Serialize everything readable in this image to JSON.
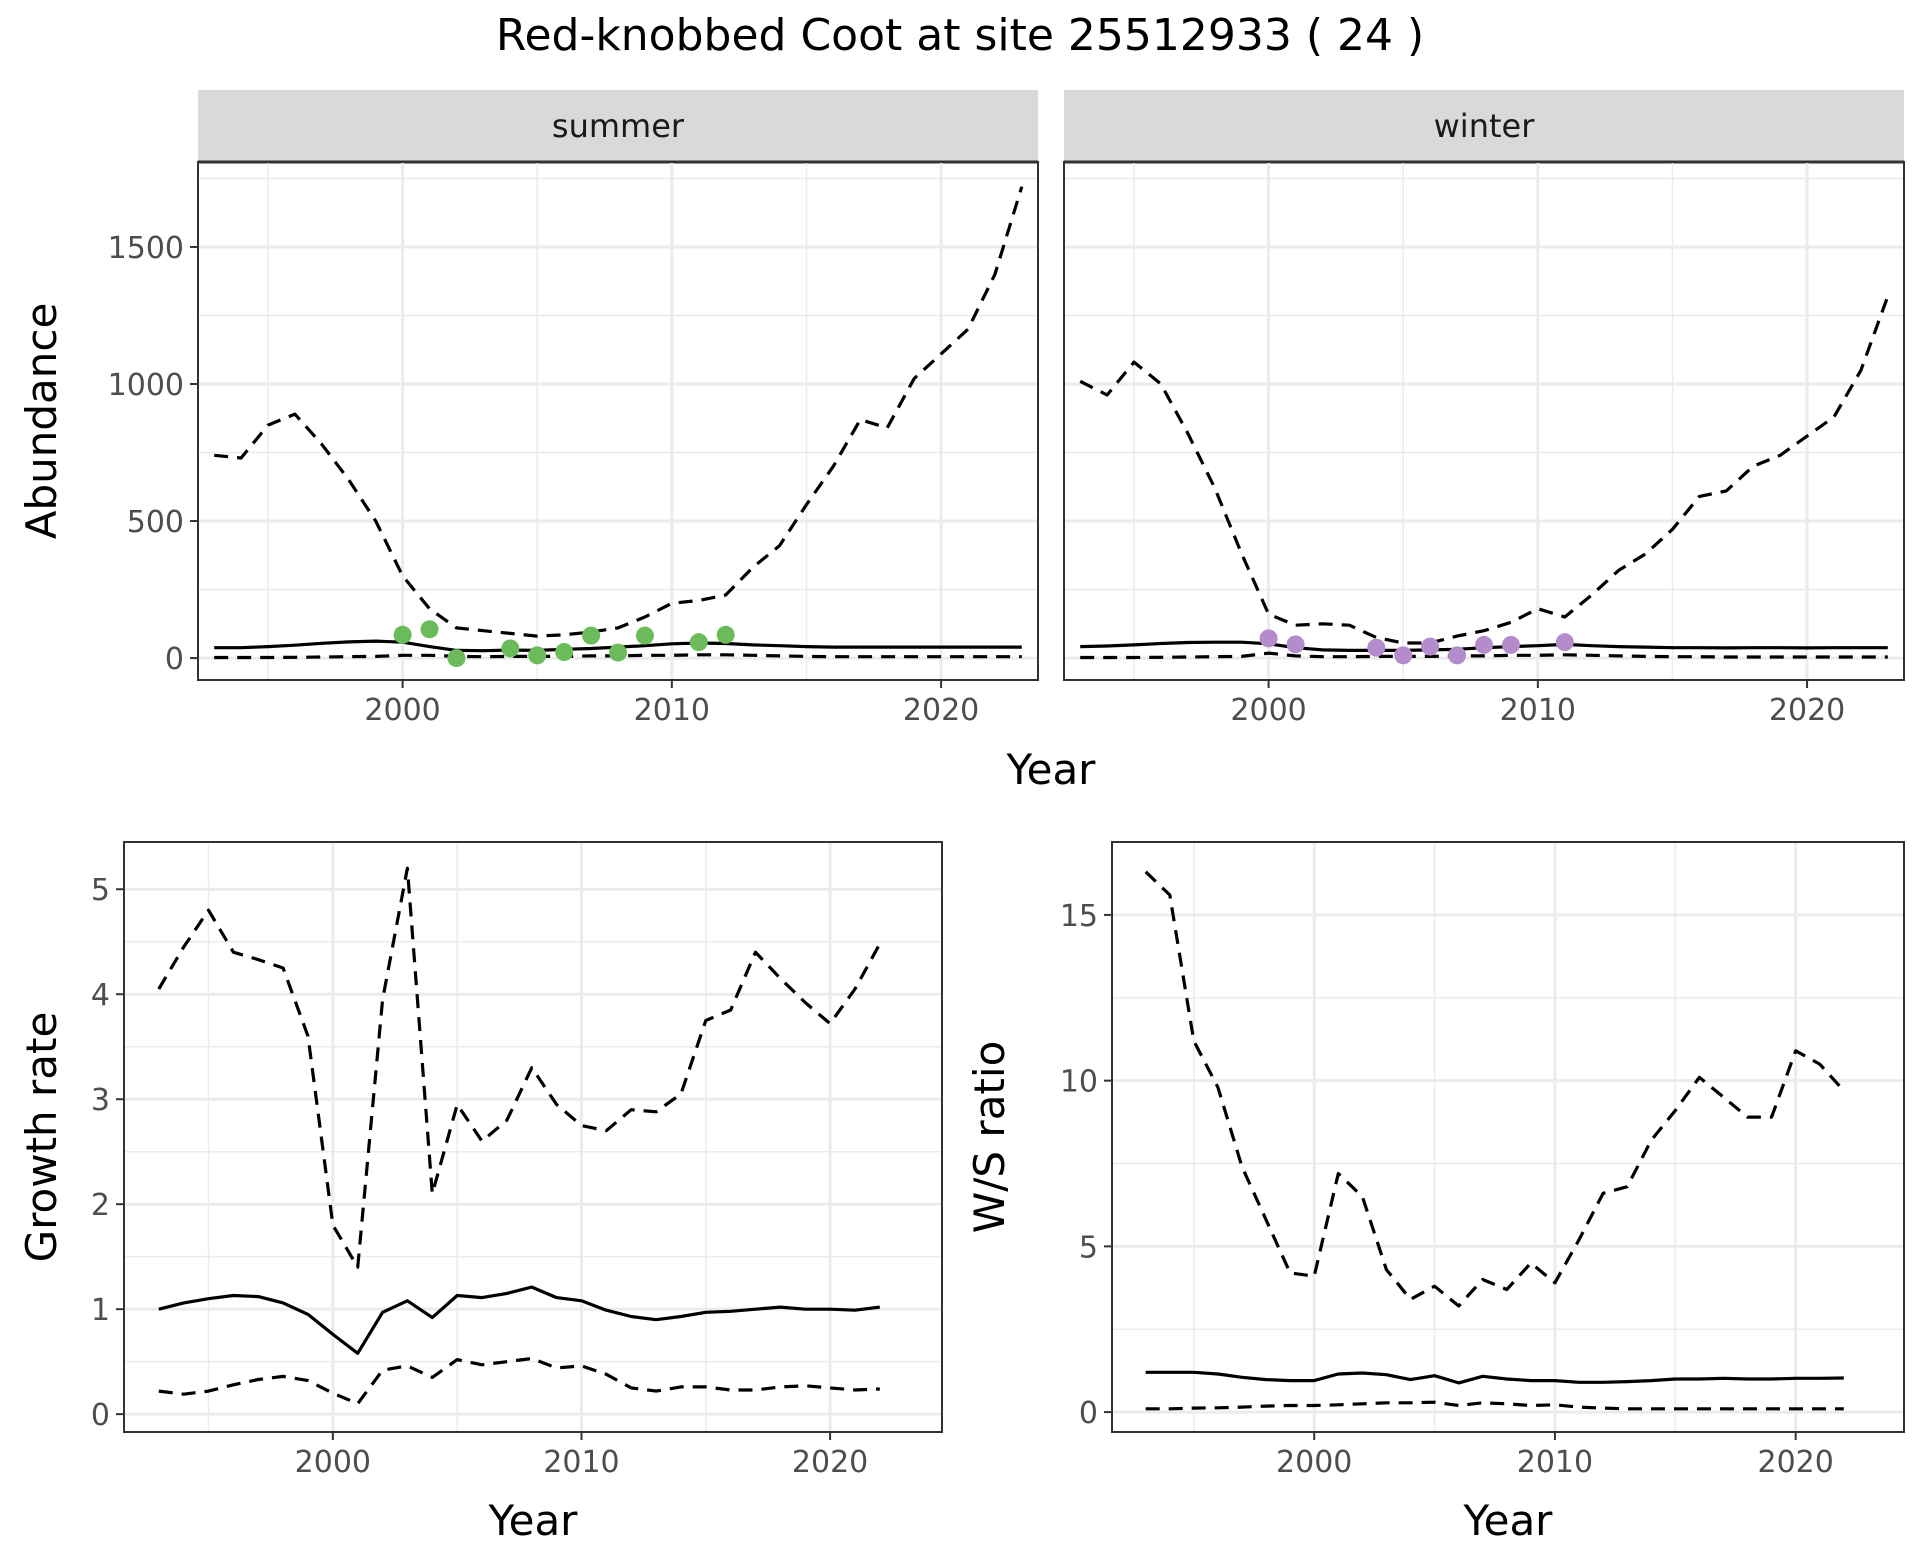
{
  "figure": {
    "title": "Red-knobbed Coot at site 25512933 ( 24 )"
  },
  "colors": {
    "summer_points": "#6cbb5a",
    "winter_points": "#b48ccb",
    "line": "#000000",
    "strip_fill": "#d9d9d9",
    "grid": "#ebebeb"
  },
  "chart_data": [
    {
      "type": "line",
      "title": "",
      "xlabel": "Year",
      "ylabel": "Abundance",
      "facets": [
        "summer",
        "winter"
      ],
      "xlim": [
        1992.4,
        2023.6
      ],
      "ylim": [
        -80,
        1810
      ],
      "xticks": [
        2000,
        2010,
        2020
      ],
      "yticks": [
        0,
        500,
        1000,
        1500
      ],
      "grid": true,
      "legend": "none",
      "panels": [
        {
          "facet": "summer",
          "x": [
            1993,
            1994,
            1995,
            1996,
            1997,
            1998,
            1999,
            2000,
            2001,
            2002,
            2003,
            2004,
            2005,
            2006,
            2007,
            2008,
            2009,
            2010,
            2011,
            2012,
            2013,
            2014,
            2015,
            2016,
            2017,
            2018,
            2019,
            2020,
            2021,
            2022,
            2023
          ],
          "mean": [
            38,
            38,
            42,
            47,
            54,
            59,
            62,
            58,
            42,
            28,
            27,
            29,
            28,
            32,
            35,
            40,
            45,
            52,
            55,
            53,
            48,
            45,
            42,
            40,
            40,
            40,
            40,
            40,
            40,
            40,
            40
          ],
          "upper": [
            740,
            730,
            850,
            890,
            780,
            650,
            500,
            300,
            180,
            110,
            100,
            90,
            80,
            85,
            95,
            110,
            150,
            200,
            210,
            230,
            330,
            410,
            560,
            700,
            870,
            840,
            1020,
            1110,
            1200,
            1400,
            1720
          ],
          "lower": [
            2,
            2,
            2,
            3,
            4,
            5,
            6,
            10,
            10,
            6,
            5,
            6,
            6,
            6,
            8,
            8,
            10,
            10,
            12,
            12,
            10,
            8,
            6,
            5,
            5,
            5,
            5,
            5,
            5,
            5,
            5
          ],
          "points": {
            "x": [
              2000,
              2001,
              2002,
              2004,
              2005,
              2006,
              2007,
              2008,
              2009,
              2011,
              2012
            ],
            "y": [
              85,
              105,
              0,
              35,
              10,
              22,
              82,
              20,
              82,
              58,
              85
            ]
          }
        },
        {
          "facet": "winter",
          "x": [
            1993,
            1994,
            1995,
            1996,
            1997,
            1998,
            1999,
            2000,
            2001,
            2002,
            2003,
            2004,
            2005,
            2006,
            2007,
            2008,
            2009,
            2010,
            2011,
            2012,
            2013,
            2014,
            2015,
            2016,
            2017,
            2018,
            2019,
            2020,
            2021,
            2022,
            2023
          ],
          "mean": [
            42,
            44,
            48,
            53,
            57,
            58,
            58,
            52,
            38,
            30,
            28,
            28,
            28,
            30,
            32,
            38,
            42,
            45,
            50,
            45,
            42,
            40,
            38,
            38,
            37,
            38,
            38,
            37,
            38,
            38,
            38
          ],
          "upper": [
            1010,
            960,
            1080,
            1000,
            820,
            620,
            380,
            160,
            120,
            125,
            120,
            75,
            55,
            55,
            80,
            100,
            130,
            180,
            150,
            230,
            320,
            380,
            470,
            590,
            610,
            700,
            740,
            810,
            880,
            1050,
            1320
          ],
          "lower": [
            2,
            2,
            2,
            3,
            4,
            5,
            6,
            18,
            8,
            5,
            5,
            6,
            6,
            6,
            8,
            8,
            10,
            10,
            12,
            10,
            8,
            6,
            5,
            5,
            4,
            4,
            4,
            4,
            4,
            4,
            4
          ],
          "points": {
            "x": [
              2000,
              2001,
              2004,
              2005,
              2006,
              2007,
              2008,
              2009,
              2011
            ],
            "y": [
              72,
              50,
              38,
              10,
              42,
              10,
              48,
              48,
              58
            ]
          }
        }
      ]
    },
    {
      "type": "line",
      "title": "",
      "xlabel": "Year",
      "ylabel": "Growth rate",
      "xlim": [
        1991.6,
        2024.5
      ],
      "ylim": [
        -0.17,
        5.45
      ],
      "xticks": [
        2000,
        2010,
        2020
      ],
      "yticks": [
        0,
        1,
        2,
        3,
        4,
        5
      ],
      "grid": true,
      "legend": "none",
      "x": [
        1993,
        1994,
        1995,
        1996,
        1997,
        1998,
        1999,
        2000,
        2001,
        2002,
        2003,
        2004,
        2005,
        2006,
        2007,
        2008,
        2009,
        2010,
        2011,
        2012,
        2013,
        2014,
        2015,
        2016,
        2017,
        2018,
        2019,
        2020,
        2021,
        2022
      ],
      "mean": [
        1.0,
        1.06,
        1.1,
        1.13,
        1.12,
        1.06,
        0.95,
        0.76,
        0.58,
        0.97,
        1.08,
        0.92,
        1.13,
        1.11,
        1.15,
        1.21,
        1.11,
        1.08,
        0.99,
        0.93,
        0.9,
        0.93,
        0.97,
        0.98,
        1.0,
        1.02,
        1.0,
        1.0,
        0.99,
        1.02
      ],
      "upper": [
        4.05,
        4.45,
        4.8,
        4.4,
        4.33,
        4.25,
        3.6,
        1.8,
        1.4,
        3.95,
        5.2,
        2.1,
        2.95,
        2.6,
        2.8,
        3.3,
        2.95,
        2.75,
        2.7,
        2.9,
        2.88,
        3.05,
        3.75,
        3.85,
        4.4,
        4.15,
        3.92,
        3.72,
        4.05,
        4.48
      ],
      "lower": [
        0.22,
        0.19,
        0.22,
        0.28,
        0.33,
        0.36,
        0.32,
        0.2,
        0.1,
        0.42,
        0.46,
        0.35,
        0.52,
        0.47,
        0.5,
        0.53,
        0.44,
        0.46,
        0.38,
        0.25,
        0.22,
        0.26,
        0.26,
        0.23,
        0.23,
        0.26,
        0.27,
        0.25,
        0.23,
        0.24
      ]
    },
    {
      "type": "line",
      "title": "",
      "xlabel": "Year",
      "ylabel": "W/S ratio",
      "xlim": [
        1991.6,
        2024.5
      ],
      "ylim": [
        -0.6,
        17.2
      ],
      "xticks": [
        2000,
        2010,
        2020
      ],
      "yticks": [
        0,
        5,
        10,
        15
      ],
      "grid": true,
      "legend": "none",
      "x": [
        1993,
        1994,
        1995,
        1996,
        1997,
        1998,
        1999,
        2000,
        2001,
        2002,
        2003,
        2004,
        2005,
        2006,
        2007,
        2008,
        2009,
        2010,
        2011,
        2012,
        2013,
        2014,
        2015,
        2016,
        2017,
        2018,
        2019,
        2020,
        2021,
        2022
      ],
      "mean": [
        1.2,
        1.2,
        1.2,
        1.15,
        1.05,
        0.98,
        0.95,
        0.95,
        1.15,
        1.18,
        1.13,
        0.98,
        1.1,
        0.88,
        1.08,
        1.0,
        0.95,
        0.95,
        0.9,
        0.9,
        0.92,
        0.95,
        1.0,
        1.0,
        1.02,
        1.0,
        1.0,
        1.02,
        1.02,
        1.03
      ],
      "upper": [
        16.3,
        15.6,
        11.2,
        9.8,
        7.4,
        5.8,
        4.2,
        4.1,
        7.2,
        6.5,
        4.3,
        3.4,
        3.8,
        3.2,
        4.0,
        3.7,
        4.5,
        3.9,
        5.2,
        6.6,
        6.8,
        8.2,
        9.1,
        10.1,
        9.5,
        8.9,
        8.9,
        10.9,
        10.5,
        9.7
      ],
      "lower": [
        0.1,
        0.1,
        0.12,
        0.13,
        0.15,
        0.18,
        0.2,
        0.2,
        0.22,
        0.25,
        0.28,
        0.28,
        0.3,
        0.2,
        0.28,
        0.25,
        0.2,
        0.22,
        0.15,
        0.12,
        0.1,
        0.1,
        0.1,
        0.1,
        0.1,
        0.1,
        0.1,
        0.1,
        0.1,
        0.1
      ]
    }
  ]
}
